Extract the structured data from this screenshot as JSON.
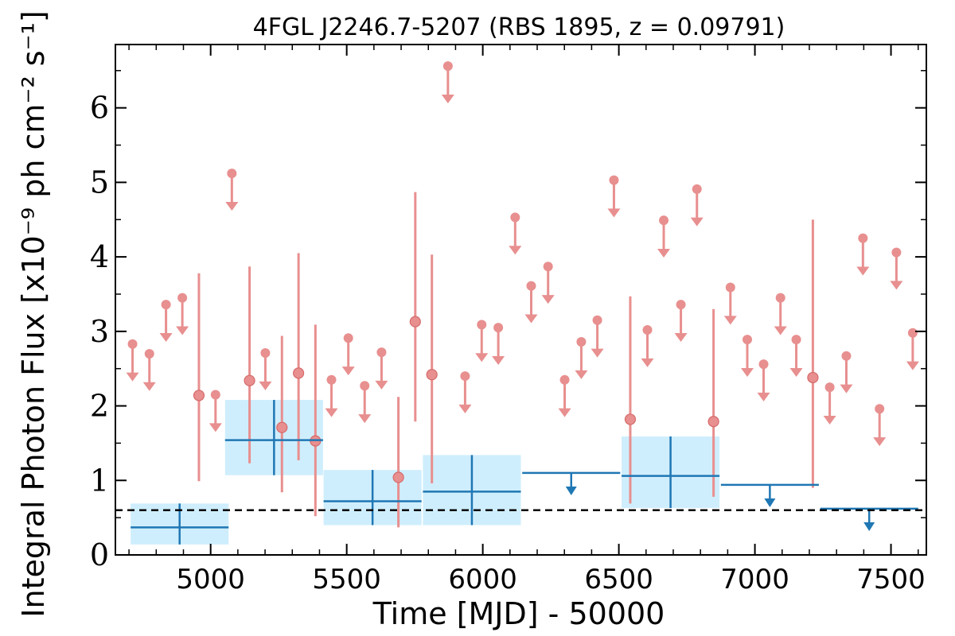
{
  "chart_data": {
    "type": "scatter",
    "title": "4FGL J2246.7-5207 (RBS 1895, z = 0.09791)",
    "xlabel": "Time [MJD] - 50000",
    "ylabel": "Integral Photon Flux [x10⁻⁹ ph cm⁻² s⁻¹]",
    "xlim": [
      4650,
      7630
    ],
    "ylim": [
      0,
      6.85
    ],
    "x_ticks": [
      5000,
      5500,
      6000,
      6500,
      7000,
      7500
    ],
    "y_ticks": [
      0,
      1,
      2,
      3,
      4,
      5,
      6
    ],
    "reference_line": 0.6,
    "colors": {
      "short_bins": "#e88f8f",
      "long_bins": "#1f77b4",
      "long_bin_box": "#cfeefd"
    },
    "series": [
      {
        "points": [
          {
            "x": 4886,
            "y": 0.37,
            "xerr": 180,
            "yerr": [
              0.23,
              0.32
            ]
          },
          {
            "x": 5233,
            "y": 1.54,
            "xerr": 180,
            "yerr": [
              0.47,
              0.54
            ]
          },
          {
            "x": 5595,
            "y": 0.72,
            "xerr": 180,
            "yerr": [
              0.32,
              0.42
            ]
          },
          {
            "x": 5960,
            "y": 0.85,
            "xerr": 180,
            "yerr": [
              0.45,
              0.49
            ]
          },
          {
            "x": 6690,
            "y": 1.06,
            "xerr": 180,
            "yerr": [
              0.43,
              0.53
            ]
          }
        ],
        "upper_limits": [
          {
            "x": 6325,
            "y": 1.1,
            "xerr": 180
          },
          {
            "x": 7055,
            "y": 0.94,
            "xerr": 180
          },
          {
            "x": 7420,
            "y": 0.62,
            "xerr": 180
          }
        ]
      },
      {
        "points": [
          {
            "x": 4957,
            "y": 2.14,
            "yerr": [
              1.15,
              1.64
            ]
          },
          {
            "x": 5143,
            "y": 2.34,
            "yerr": [
              1.11,
              1.53
            ]
          },
          {
            "x": 5262,
            "y": 1.71,
            "yerr": [
              0.87,
              1.23
            ]
          },
          {
            "x": 5323,
            "y": 2.44,
            "yerr": [
              1.17,
              1.61
            ]
          },
          {
            "x": 5385,
            "y": 1.53,
            "yerr": [
              1.01,
              1.56
            ]
          },
          {
            "x": 5690,
            "y": 1.04,
            "yerr": [
              0.67,
              1.08
            ]
          },
          {
            "x": 5752,
            "y": 3.13,
            "yerr": [
              1.34,
              1.74
            ]
          },
          {
            "x": 5813,
            "y": 2.42,
            "yerr": [
              1.46,
              1.61
            ]
          },
          {
            "x": 6542,
            "y": 1.82,
            "yerr": [
              1.13,
              1.65
            ]
          },
          {
            "x": 6848,
            "y": 1.79,
            "yerr": [
              1.01,
              1.51
            ]
          },
          {
            "x": 7213,
            "y": 2.38,
            "yerr": [
              1.48,
              2.12
            ]
          }
        ],
        "upper_limits": [
          {
            "x": 4713,
            "y": 2.83
          },
          {
            "x": 4775,
            "y": 2.7
          },
          {
            "x": 4836,
            "y": 3.36
          },
          {
            "x": 4896,
            "y": 3.45
          },
          {
            "x": 5018,
            "y": 2.15
          },
          {
            "x": 5078,
            "y": 5.12
          },
          {
            "x": 5201,
            "y": 2.71
          },
          {
            "x": 5444,
            "y": 2.35
          },
          {
            "x": 5506,
            "y": 2.91
          },
          {
            "x": 5566,
            "y": 2.27
          },
          {
            "x": 5628,
            "y": 2.72
          },
          {
            "x": 5872,
            "y": 6.56
          },
          {
            "x": 5935,
            "y": 2.4
          },
          {
            "x": 5996,
            "y": 3.09
          },
          {
            "x": 6057,
            "y": 3.05
          },
          {
            "x": 6119,
            "y": 4.53
          },
          {
            "x": 6178,
            "y": 3.61
          },
          {
            "x": 6240,
            "y": 3.87
          },
          {
            "x": 6301,
            "y": 2.35
          },
          {
            "x": 6362,
            "y": 2.86
          },
          {
            "x": 6421,
            "y": 3.15
          },
          {
            "x": 6482,
            "y": 5.03
          },
          {
            "x": 6605,
            "y": 3.02
          },
          {
            "x": 6665,
            "y": 4.49
          },
          {
            "x": 6728,
            "y": 3.36
          },
          {
            "x": 6787,
            "y": 4.91
          },
          {
            "x": 6910,
            "y": 3.59
          },
          {
            "x": 6972,
            "y": 2.89
          },
          {
            "x": 7032,
            "y": 2.56
          },
          {
            "x": 7094,
            "y": 3.45
          },
          {
            "x": 7152,
            "y": 2.89
          },
          {
            "x": 7275,
            "y": 2.25
          },
          {
            "x": 7336,
            "y": 2.67
          },
          {
            "x": 7397,
            "y": 4.25
          },
          {
            "x": 7458,
            "y": 1.96
          },
          {
            "x": 7520,
            "y": 4.06
          },
          {
            "x": 7580,
            "y": 2.98
          }
        ]
      }
    ]
  }
}
